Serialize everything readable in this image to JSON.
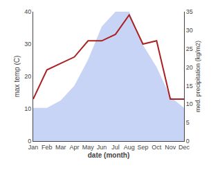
{
  "chart_data": {
    "type": "line",
    "xlabel": "date (month)",
    "ylabel": "max temp (C)",
    "y2label": "med. precipitation (kg/m2)",
    "categories": [
      "Jan",
      "Feb",
      "Mar",
      "Apr",
      "May",
      "Jun",
      "Jul",
      "Aug",
      "Sep",
      "Oct",
      "Nov",
      "Dec"
    ],
    "series": [
      {
        "type": "line",
        "color": "#aa2020",
        "values": [
          13,
          22,
          24,
          26,
          31,
          31,
          33,
          39,
          30,
          31,
          13,
          13
        ]
      },
      {
        "type": "area",
        "color": "#c8d4f5",
        "axis": "y2",
        "values": [
          9,
          9,
          11,
          15,
          22,
          31,
          35,
          35,
          26,
          20,
          12,
          9
        ]
      }
    ],
    "ylim": [
      0,
      40
    ],
    "yticks": [
      0,
      10,
      20,
      30,
      40
    ],
    "y2lim": [
      0,
      35
    ],
    "y2ticks": [
      0,
      5,
      10,
      15,
      20,
      25,
      30,
      35
    ],
    "grid": false
  }
}
